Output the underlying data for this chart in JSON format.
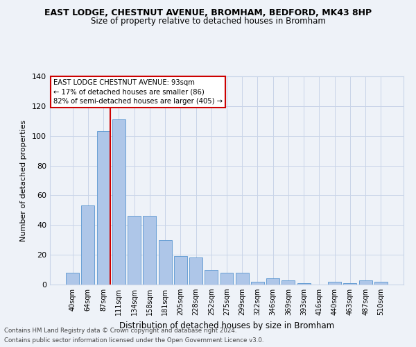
{
  "title": "EAST LODGE, CHESTNUT AVENUE, BROMHAM, BEDFORD, MK43 8HP",
  "subtitle": "Size of property relative to detached houses in Bromham",
  "xlabel": "Distribution of detached houses by size in Bromham",
  "ylabel": "Number of detached properties",
  "footnote1": "Contains HM Land Registry data © Crown copyright and database right 2024.",
  "footnote2": "Contains public sector information licensed under the Open Government Licence v3.0.",
  "bar_labels": [
    "40sqm",
    "64sqm",
    "87sqm",
    "111sqm",
    "134sqm",
    "158sqm",
    "181sqm",
    "205sqm",
    "228sqm",
    "252sqm",
    "275sqm",
    "299sqm",
    "322sqm",
    "346sqm",
    "369sqm",
    "393sqm",
    "416sqm",
    "440sqm",
    "463sqm",
    "487sqm",
    "510sqm"
  ],
  "bar_values": [
    8,
    53,
    103,
    111,
    46,
    46,
    30,
    19,
    18,
    10,
    8,
    8,
    2,
    4,
    3,
    1,
    0,
    2,
    1,
    3,
    2
  ],
  "bar_color": "#aec6e8",
  "bar_edge_color": "#5a96d0",
  "grid_color": "#c8d4e8",
  "background_color": "#eef2f8",
  "vline_x_index": 2,
  "vline_color": "#cc0000",
  "annotation_title": "EAST LODGE CHESTNUT AVENUE: 93sqm",
  "annotation_line1": "← 17% of detached houses are smaller (86)",
  "annotation_line2": "82% of semi-detached houses are larger (405) →",
  "annotation_box_color": "#cc0000",
  "ylim": [
    0,
    140
  ],
  "yticks": [
    0,
    20,
    40,
    60,
    80,
    100,
    120,
    140
  ]
}
